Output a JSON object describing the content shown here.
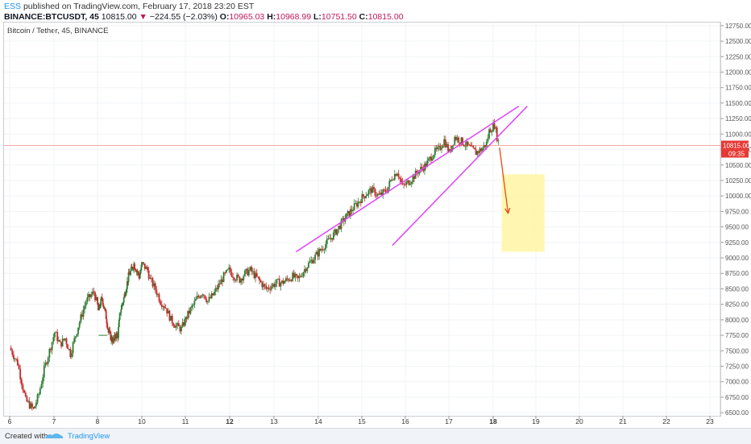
{
  "header": {
    "publisher": "ESS",
    "published_text": "published on TradingView.com, February 17, 2018 23:20 EST",
    "symbol": "BINANCE:BTCUSDT, 45",
    "last": "10815.00",
    "change_arrow": "▼",
    "change": "−224.55 (−2.03%)",
    "o_label": "O:",
    "o_value": "10965.03",
    "h_label": "H:",
    "h_value": "10968.99",
    "l_label": "L:",
    "l_value": "10751.50",
    "c_label": "C:",
    "c_value": "10815.00"
  },
  "series_label": "Bitcoin / Tether, 45, BINANCE",
  "footer": {
    "created_with": "Created with",
    "brand": "TradingView"
  },
  "chart_data": {
    "type": "candlestick",
    "symbol": "BINANCE:BTCUSDT",
    "interval": "45",
    "y_axis": {
      "ticks": [
        "6500.00",
        "6750.00",
        "7000.00",
        "7250.00",
        "7500.00",
        "7750.00",
        "8000.00",
        "8250.00",
        "8500.00",
        "8750.00",
        "9000.00",
        "9250.00",
        "9500.00",
        "9750.00",
        "10000.00",
        "10250.00",
        "10500.00",
        "10750.00",
        "11000.00",
        "11250.00",
        "11500.00",
        "11750.00",
        "12000.00",
        "12250.00",
        "12500.00",
        "12750.00"
      ],
      "range": [
        6450,
        12800
      ]
    },
    "x_axis": {
      "ticks": [
        "6",
        "7",
        "8",
        "10",
        "11",
        "12",
        "13",
        "14",
        "15",
        "16",
        "17",
        "18",
        "19",
        "20",
        "21",
        "22",
        "23"
      ],
      "bold_ticks": [
        "12",
        "18"
      ],
      "range_days": [
        6,
        23
      ]
    },
    "last_price": {
      "value": 10815.0,
      "label": "10815.00",
      "countdown": "09:35",
      "color": "#e53935"
    },
    "price_path": [
      [
        6.0,
        7550
      ],
      [
        6.15,
        7300
      ],
      [
        6.3,
        6700
      ],
      [
        6.45,
        6550
      ],
      [
        6.55,
        6800
      ],
      [
        6.65,
        7200
      ],
      [
        6.75,
        7500
      ],
      [
        6.85,
        7800
      ],
      [
        6.95,
        7600
      ],
      [
        7.05,
        7700
      ],
      [
        7.15,
        7450
      ],
      [
        7.3,
        7900
      ],
      [
        7.45,
        8300
      ],
      [
        7.6,
        8450
      ],
      [
        7.7,
        8150
      ],
      [
        7.85,
        8350
      ],
      [
        8.0,
        8050
      ],
      [
        8.1,
        7800
      ],
      [
        8.2,
        7700
      ],
      [
        8.3,
        7650
      ],
      [
        8.35,
        7750
      ],
      [
        8.45,
        7750
      ],
      [
        8.55,
        8150
      ],
      [
        8.65,
        8300
      ],
      [
        8.75,
        8500
      ],
      [
        8.85,
        8700
      ],
      [
        8.95,
        8800
      ],
      [
        9.05,
        8900
      ],
      [
        9.15,
        8800
      ],
      [
        9.25,
        8700
      ],
      [
        9.35,
        8900
      ],
      [
        9.45,
        8800
      ],
      [
        9.5,
        8650
      ],
      [
        9.6,
        8500
      ],
      [
        9.7,
        8300
      ],
      [
        9.8,
        8200
      ],
      [
        9.9,
        8000
      ],
      [
        10.0,
        7900
      ],
      [
        10.1,
        7850
      ],
      [
        10.2,
        8050
      ],
      [
        10.3,
        8200
      ],
      [
        10.4,
        8350
      ],
      [
        10.5,
        8450
      ],
      [
        10.6,
        8300
      ],
      [
        10.7,
        8400
      ],
      [
        10.8,
        8550
      ],
      [
        10.9,
        8700
      ],
      [
        11.0,
        8800
      ],
      [
        11.1,
        8700
      ],
      [
        11.2,
        8650
      ],
      [
        11.3,
        8750
      ],
      [
        11.4,
        8800
      ],
      [
        11.5,
        8700
      ],
      [
        11.6,
        8600
      ],
      [
        11.7,
        8500
      ],
      [
        11.8,
        8550
      ],
      [
        11.9,
        8600
      ],
      [
        12.0,
        8600
      ],
      [
        12.1,
        8650
      ],
      [
        12.2,
        8700
      ],
      [
        12.3,
        8650
      ],
      [
        12.45,
        8850
      ],
      [
        12.6,
        9000
      ],
      [
        12.8,
        9200
      ],
      [
        13.0,
        9400
      ],
      [
        13.2,
        9650
      ],
      [
        13.4,
        9850
      ],
      [
        13.55,
        10000
      ],
      [
        13.7,
        10100
      ],
      [
        13.85,
        10000
      ],
      [
        14.0,
        10100
      ],
      [
        14.1,
        10300
      ],
      [
        14.2,
        10400
      ],
      [
        14.3,
        10150
      ],
      [
        14.45,
        10250
      ],
      [
        14.6,
        10400
      ],
      [
        14.75,
        10500
      ],
      [
        14.9,
        10700
      ],
      [
        15.0,
        10750
      ],
      [
        15.1,
        10900
      ],
      [
        15.2,
        10700
      ],
      [
        15.3,
        10950
      ],
      [
        15.4,
        10900
      ],
      [
        15.55,
        10800
      ],
      [
        15.7,
        10700
      ],
      [
        15.8,
        10750
      ],
      [
        15.9,
        10850
      ],
      [
        15.95,
        11050
      ],
      [
        16.0,
        11100
      ],
      [
        16.05,
        11150
      ],
      [
        16.1,
        10950
      ],
      [
        16.15,
        10800
      ]
    ],
    "annotations": [
      {
        "type": "trendline",
        "color": "#e040fb",
        "from": [
          13.5,
          9100
        ],
        "to": [
          18.6,
          11450
        ]
      },
      {
        "type": "trendline",
        "color": "#e040fb",
        "from": [
          15.7,
          9200
        ],
        "to": [
          18.8,
          11450
        ]
      },
      {
        "type": "arrow",
        "color": "#e64a19",
        "from": [
          18.15,
          10780
        ],
        "to": [
          18.35,
          9720
        ]
      },
      {
        "type": "rectangle",
        "fill": "#fff59d",
        "from": [
          18.2,
          10350
        ],
        "to": [
          19.2,
          9100
        ]
      }
    ]
  }
}
